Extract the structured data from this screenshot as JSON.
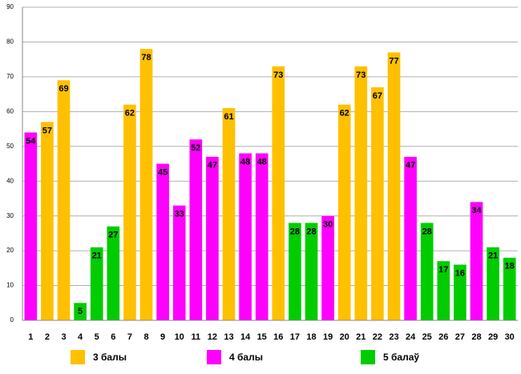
{
  "chart_data": {
    "type": "bar",
    "categories": [
      "1",
      "2",
      "3",
      "4",
      "5",
      "6",
      "7",
      "8",
      "9",
      "10",
      "11",
      "12",
      "13",
      "14",
      "15",
      "16",
      "17",
      "18",
      "19",
      "20",
      "21",
      "22",
      "23",
      "24",
      "25",
      "26",
      "27",
      "28",
      "29",
      "30"
    ],
    "series": [
      {
        "name": "3 балы",
        "color": "#FFC000",
        "values": [
          null,
          57,
          69,
          null,
          null,
          null,
          62,
          78,
          null,
          null,
          null,
          null,
          61,
          null,
          null,
          73,
          null,
          null,
          null,
          62,
          73,
          67,
          77,
          null,
          null,
          null,
          null,
          null,
          null,
          null
        ]
      },
      {
        "name": "4 балы",
        "color": "#FF00FF",
        "values": [
          54,
          null,
          null,
          null,
          null,
          null,
          null,
          null,
          45,
          33,
          52,
          47,
          null,
          48,
          48,
          null,
          null,
          null,
          30,
          null,
          null,
          null,
          null,
          47,
          null,
          null,
          null,
          34,
          null,
          null
        ]
      },
      {
        "name": "5 балаў",
        "color": "#00CC00",
        "values": [
          null,
          null,
          null,
          5,
          21,
          27,
          null,
          null,
          null,
          null,
          null,
          null,
          null,
          null,
          null,
          null,
          28,
          28,
          null,
          null,
          null,
          null,
          null,
          null,
          28,
          17,
          16,
          null,
          21,
          18
        ]
      }
    ],
    "ylim": [
      0,
      90
    ],
    "yticks": [
      0,
      10,
      20,
      30,
      40,
      50,
      60,
      70,
      80,
      90
    ],
    "grid": true
  }
}
